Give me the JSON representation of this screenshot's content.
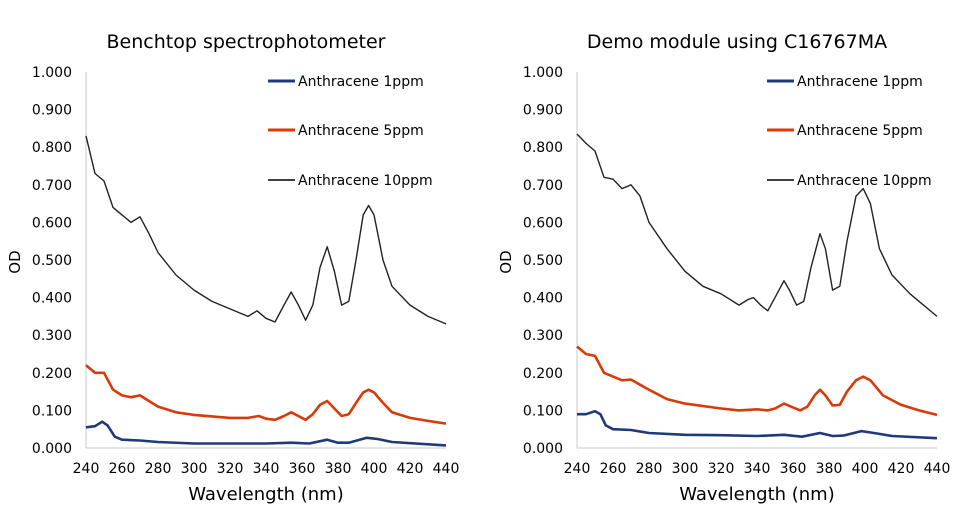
{
  "chart_data": [
    {
      "type": "line",
      "title": "Benchtop spectrophotometer",
      "xlabel": "Wavelength (nm)",
      "ylabel": "OD",
      "xlim": [
        240,
        440
      ],
      "ylim": [
        0,
        1
      ],
      "xticks": [
        "240",
        "260",
        "280",
        "300",
        "320",
        "340",
        "360",
        "380",
        "400",
        "420",
        "440"
      ],
      "yticks": [
        "0.000",
        "0.100",
        "0.200",
        "0.300",
        "0.400",
        "0.500",
        "0.600",
        "0.700",
        "0.800",
        "0.900",
        "1.000"
      ],
      "grid": false,
      "legend": "top-right",
      "series": [
        {
          "name": "Anthracene 1ppm",
          "color": "#1f3a7a",
          "x": [
            240,
            245,
            249,
            252,
            256,
            260,
            270,
            280,
            300,
            340,
            354,
            364,
            374,
            380,
            386,
            396,
            402,
            410,
            440
          ],
          "y": [
            0.055,
            0.058,
            0.07,
            0.06,
            0.03,
            0.022,
            0.02,
            0.016,
            0.012,
            0.012,
            0.014,
            0.012,
            0.022,
            0.014,
            0.014,
            0.027,
            0.024,
            0.016,
            0.007
          ]
        },
        {
          "name": "Anthracene 5ppm",
          "color": "#d83a0a",
          "x": [
            240,
            245,
            250,
            255,
            260,
            265,
            270,
            280,
            290,
            300,
            320,
            330,
            336,
            340,
            345,
            350,
            354,
            358,
            362,
            366,
            370,
            374,
            378,
            382,
            386,
            390,
            394,
            397,
            400,
            405,
            410,
            420,
            430,
            440
          ],
          "y": [
            0.22,
            0.2,
            0.2,
            0.155,
            0.14,
            0.135,
            0.14,
            0.11,
            0.095,
            0.088,
            0.08,
            0.08,
            0.085,
            0.078,
            0.075,
            0.085,
            0.095,
            0.085,
            0.075,
            0.09,
            0.115,
            0.125,
            0.105,
            0.085,
            0.09,
            0.12,
            0.148,
            0.155,
            0.148,
            0.12,
            0.095,
            0.08,
            0.072,
            0.065
          ]
        },
        {
          "name": "Anthracene 10ppm",
          "color": "#222222",
          "x": [
            240,
            245,
            250,
            255,
            260,
            265,
            270,
            275,
            280,
            290,
            300,
            310,
            320,
            330,
            335,
            340,
            345,
            350,
            354,
            358,
            362,
            366,
            370,
            374,
            378,
            382,
            386,
            390,
            394,
            397,
            400,
            405,
            410,
            420,
            430,
            440
          ],
          "y": [
            0.83,
            0.73,
            0.71,
            0.64,
            0.62,
            0.6,
            0.615,
            0.57,
            0.52,
            0.46,
            0.42,
            0.39,
            0.37,
            0.35,
            0.365,
            0.345,
            0.335,
            0.38,
            0.415,
            0.38,
            0.34,
            0.38,
            0.48,
            0.535,
            0.47,
            0.38,
            0.39,
            0.5,
            0.62,
            0.645,
            0.62,
            0.5,
            0.43,
            0.38,
            0.35,
            0.33
          ]
        }
      ]
    },
    {
      "type": "line",
      "title": "Demo module using C16767MA",
      "xlabel": "Wavelength (nm)",
      "ylabel": "OD",
      "xlim": [
        240,
        440
      ],
      "ylim": [
        0,
        1
      ],
      "xticks": [
        "240",
        "260",
        "280",
        "300",
        "320",
        "340",
        "360",
        "380",
        "400",
        "420",
        "440"
      ],
      "yticks": [
        "0.000",
        "0.100",
        "0.200",
        "0.300",
        "0.400",
        "0.500",
        "0.600",
        "0.700",
        "0.800",
        "0.900",
        "1.000"
      ],
      "grid": false,
      "legend": "top-right",
      "series": [
        {
          "name": "Anthracene 1ppm",
          "color": "#1f3a7a",
          "x": [
            240,
            245,
            250,
            253,
            256,
            260,
            270,
            280,
            300,
            320,
            340,
            355,
            365,
            375,
            382,
            388,
            398,
            405,
            415,
            440
          ],
          "y": [
            0.09,
            0.09,
            0.098,
            0.09,
            0.06,
            0.05,
            0.048,
            0.04,
            0.035,
            0.034,
            0.032,
            0.035,
            0.03,
            0.04,
            0.032,
            0.033,
            0.045,
            0.04,
            0.032,
            0.026
          ]
        },
        {
          "name": "Anthracene 5ppm",
          "color": "#d83a0a",
          "x": [
            240,
            245,
            250,
            255,
            260,
            265,
            270,
            280,
            290,
            300,
            320,
            330,
            340,
            346,
            350,
            355,
            360,
            364,
            368,
            372,
            375,
            378,
            382,
            386,
            390,
            395,
            399,
            403,
            410,
            420,
            430,
            440
          ],
          "y": [
            0.27,
            0.25,
            0.245,
            0.2,
            0.19,
            0.18,
            0.182,
            0.155,
            0.13,
            0.118,
            0.105,
            0.1,
            0.103,
            0.1,
            0.105,
            0.118,
            0.108,
            0.1,
            0.11,
            0.14,
            0.155,
            0.14,
            0.113,
            0.115,
            0.15,
            0.18,
            0.19,
            0.18,
            0.14,
            0.115,
            0.1,
            0.088
          ]
        },
        {
          "name": "Anthracene 10ppm",
          "color": "#222222",
          "x": [
            240,
            245,
            250,
            255,
            260,
            265,
            270,
            275,
            280,
            290,
            300,
            310,
            320,
            330,
            335,
            338,
            342,
            346,
            350,
            355,
            358,
            362,
            366,
            370,
            375,
            378,
            382,
            386,
            390,
            395,
            399,
            403,
            408,
            415,
            425,
            440
          ],
          "y": [
            0.835,
            0.81,
            0.79,
            0.72,
            0.715,
            0.69,
            0.7,
            0.67,
            0.6,
            0.53,
            0.47,
            0.43,
            0.41,
            0.38,
            0.395,
            0.4,
            0.38,
            0.365,
            0.4,
            0.445,
            0.42,
            0.38,
            0.39,
            0.48,
            0.57,
            0.53,
            0.42,
            0.43,
            0.55,
            0.67,
            0.69,
            0.65,
            0.53,
            0.46,
            0.41,
            0.35
          ]
        }
      ]
    }
  ]
}
